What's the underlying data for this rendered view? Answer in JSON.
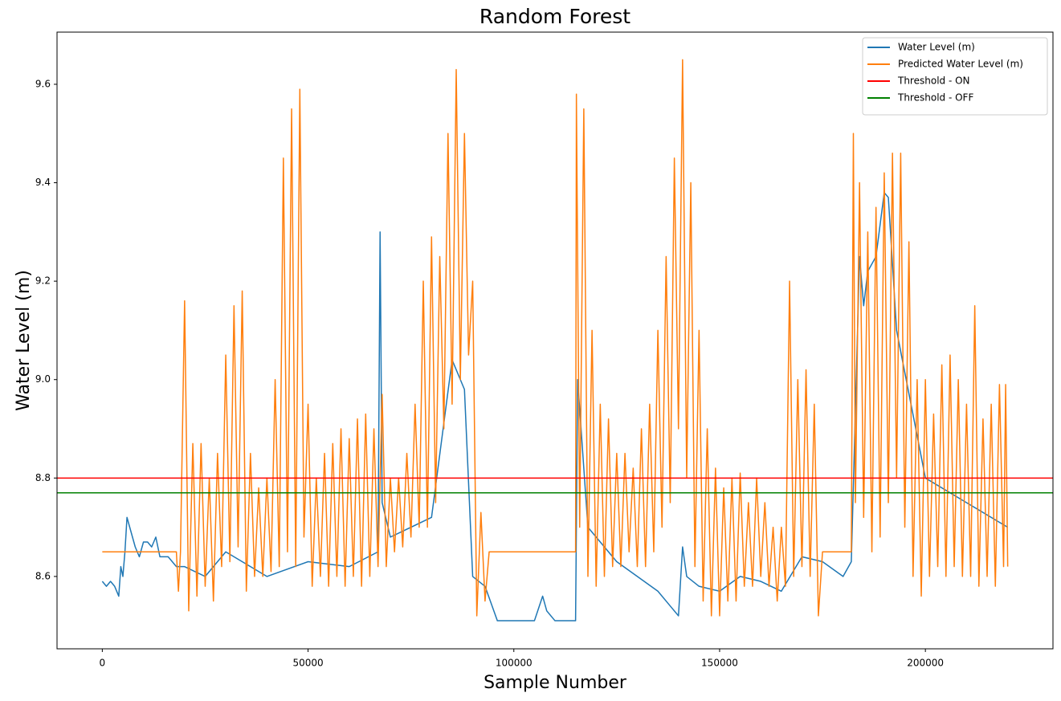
{
  "chart_data": {
    "type": "line",
    "title": "Random Forest",
    "x_label": "Sample Number",
    "y_label": "Water Level (m)",
    "xlim": [
      -11000,
      231000
    ],
    "ylim": [
      8.453,
      9.706
    ],
    "xticks": [
      0,
      50000,
      100000,
      150000,
      200000
    ],
    "yticks": [
      8.6,
      8.8,
      {
        "value": 9,
        "label": "9.0"
      },
      9.2,
      9.4,
      9.6
    ],
    "legend": "upper right",
    "series": [
      {
        "name": "Water Level (m)",
        "color": "#1f77b4",
        "x": [
          0,
          1000,
          2000,
          3000,
          4000,
          4500,
          5000,
          5500,
          6000,
          7000,
          8000,
          9000,
          10000,
          11000,
          12000,
          13000,
          14000,
          16000,
          18000,
          20000,
          25000,
          30000,
          40000,
          50000,
          60000,
          67000,
          67500,
          68000,
          70000,
          80000,
          85000,
          88000,
          90000,
          93000,
          96000,
          100000,
          105000,
          107000,
          108000,
          110000,
          112000,
          115000,
          115500,
          118000,
          125000,
          130000,
          135000,
          138000,
          140000,
          141000,
          142000,
          145000,
          150000,
          155000,
          160000,
          165000,
          170000,
          175000,
          180000,
          182000,
          184000,
          185000,
          186000,
          188000,
          190000,
          191000,
          193000,
          200000,
          210000,
          220000
        ],
        "values": [
          8.59,
          8.58,
          8.59,
          8.58,
          8.56,
          8.62,
          8.6,
          8.65,
          8.72,
          8.69,
          8.66,
          8.64,
          8.67,
          8.67,
          8.66,
          8.68,
          8.64,
          8.64,
          8.62,
          8.62,
          8.6,
          8.65,
          8.6,
          8.63,
          8.62,
          8.65,
          9.3,
          8.75,
          8.68,
          8.72,
          9.04,
          8.98,
          8.6,
          8.58,
          8.51,
          8.51,
          8.51,
          8.56,
          8.53,
          8.51,
          8.51,
          8.51,
          9.0,
          8.7,
          8.63,
          8.6,
          8.57,
          8.54,
          8.52,
          8.66,
          8.6,
          8.58,
          8.57,
          8.6,
          8.59,
          8.57,
          8.64,
          8.63,
          8.6,
          8.63,
          9.25,
          9.15,
          9.22,
          9.25,
          9.38,
          9.37,
          9.1,
          8.8,
          8.75,
          8.7
        ]
      },
      {
        "name": "Predicted Water Level (m)",
        "color": "#ff7f0e",
        "x": [
          0,
          18000,
          18500,
          19000,
          20000,
          21000,
          22000,
          23000,
          24000,
          25000,
          26000,
          27000,
          28000,
          29000,
          30000,
          31000,
          32000,
          33000,
          34000,
          35000,
          36000,
          37000,
          38000,
          39000,
          40000,
          41000,
          42000,
          43000,
          44000,
          45000,
          46000,
          47000,
          48000,
          49000,
          50000,
          51000,
          52000,
          53000,
          54000,
          55000,
          56000,
          57000,
          58000,
          59000,
          60000,
          61000,
          62000,
          63000,
          64000,
          65000,
          66000,
          67000,
          68000,
          69000,
          70000,
          71000,
          72000,
          73000,
          74000,
          75000,
          76000,
          77000,
          78000,
          79000,
          80000,
          81000,
          82000,
          83000,
          84000,
          85000,
          86000,
          87000,
          88000,
          89000,
          90000,
          91000,
          92000,
          93000,
          94000,
          115000,
          115200,
          116000,
          117000,
          118000,
          119000,
          120000,
          121000,
          122000,
          123000,
          124000,
          125000,
          126000,
          127000,
          128000,
          129000,
          130000,
          131000,
          132000,
          133000,
          134000,
          135000,
          136000,
          137000,
          138000,
          139000,
          140000,
          141000,
          142000,
          143000,
          144000,
          145000,
          146000,
          147000,
          148000,
          149000,
          150000,
          151000,
          152000,
          153000,
          154000,
          155000,
          156000,
          157000,
          158000,
          159000,
          160000,
          161000,
          162000,
          163000,
          164000,
          165000,
          166000,
          167000,
          168000,
          169000,
          170000,
          171000,
          172000,
          173000,
          174000,
          175000,
          182000,
          182500,
          183000,
          184000,
          185000,
          186000,
          187000,
          188000,
          189000,
          190000,
          191000,
          192000,
          193000,
          194000,
          195000,
          196000,
          197000,
          198000,
          199000,
          200000,
          201000,
          202000,
          203000,
          204000,
          205000,
          206000,
          207000,
          208000,
          209000,
          210000,
          211000,
          212000,
          213000,
          214000,
          215000,
          216000,
          217000,
          218000,
          219000,
          219500,
          220000
        ],
        "values": [
          8.65,
          8.65,
          8.57,
          8.65,
          9.16,
          8.53,
          8.87,
          8.56,
          8.87,
          8.58,
          8.8,
          8.55,
          8.85,
          8.62,
          9.05,
          8.63,
          9.15,
          8.66,
          9.18,
          8.57,
          8.85,
          8.6,
          8.78,
          8.6,
          8.8,
          8.61,
          9.0,
          8.62,
          9.45,
          8.65,
          9.55,
          8.62,
          9.59,
          8.68,
          8.95,
          8.58,
          8.8,
          8.6,
          8.85,
          8.58,
          8.87,
          8.6,
          8.9,
          8.58,
          8.88,
          8.6,
          8.92,
          8.58,
          8.93,
          8.6,
          8.9,
          8.62,
          8.97,
          8.62,
          8.8,
          8.65,
          8.8,
          8.66,
          8.85,
          8.68,
          8.95,
          8.7,
          9.2,
          8.7,
          9.29,
          8.75,
          9.25,
          8.9,
          9.5,
          8.95,
          9.63,
          9.0,
          9.5,
          9.05,
          9.2,
          8.52,
          8.73,
          8.55,
          8.65,
          8.65,
          9.58,
          8.7,
          9.55,
          8.6,
          9.1,
          8.58,
          8.95,
          8.6,
          8.92,
          8.62,
          8.85,
          8.62,
          8.85,
          8.65,
          8.82,
          8.62,
          8.9,
          8.62,
          8.95,
          8.65,
          9.1,
          8.7,
          9.25,
          8.75,
          9.45,
          8.9,
          9.65,
          8.8,
          9.4,
          8.62,
          9.1,
          8.55,
          8.9,
          8.52,
          8.82,
          8.52,
          8.78,
          8.55,
          8.8,
          8.55,
          8.81,
          8.58,
          8.75,
          8.58,
          8.8,
          8.6,
          8.75,
          8.58,
          8.7,
          8.55,
          8.7,
          8.58,
          9.2,
          8.6,
          9.0,
          8.62,
          9.02,
          8.6,
          8.95,
          8.52,
          8.65,
          8.65,
          9.5,
          8.75,
          9.4,
          8.72,
          9.3,
          8.65,
          9.35,
          8.68,
          9.42,
          8.75,
          9.46,
          8.8,
          9.46,
          8.7,
          9.28,
          8.6,
          9.0,
          8.56,
          9.0,
          8.6,
          8.93,
          8.62,
          9.03,
          8.6,
          9.05,
          8.62,
          9.0,
          8.6,
          8.95,
          8.6,
          9.15,
          8.58,
          8.92,
          8.6,
          8.95,
          8.58,
          8.99,
          8.62,
          8.99,
          8.62
        ]
      }
    ],
    "thresholds": [
      {
        "name": "Threshold - ON",
        "color": "#ff0000",
        "value": 8.8
      },
      {
        "name": "Threshold - OFF",
        "color": "#008000",
        "value": 8.77
      }
    ]
  }
}
